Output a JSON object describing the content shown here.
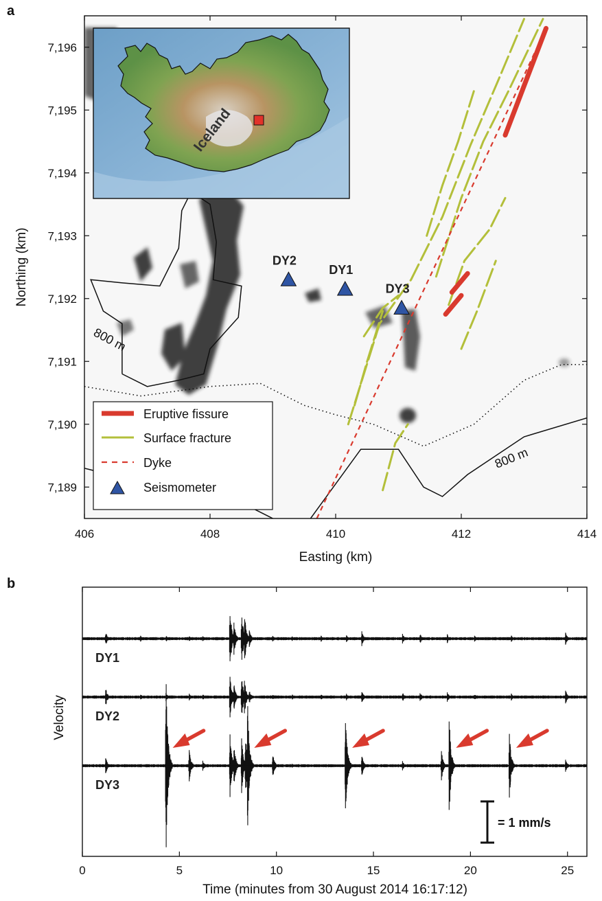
{
  "panels": {
    "a": "a",
    "b": "b"
  },
  "chart_data": [
    {
      "type": "scatter",
      "panel": "a",
      "xlabel": "Easting (km)",
      "ylabel": "Northing (km)",
      "xlim": [
        406,
        414
      ],
      "ylim": [
        7188.5,
        7196.5
      ],
      "xticks": [
        406,
        408,
        410,
        412,
        414
      ],
      "yticks": [
        7189,
        7190,
        7191,
        7192,
        7193,
        7194,
        7195,
        7196
      ],
      "ytick_labels": [
        "7,189",
        "7,190",
        "7,191",
        "7,192",
        "7,193",
        "7,194",
        "7,195",
        "7,196"
      ],
      "inset_label": "Iceland",
      "contour_label": "800 m",
      "legend": {
        "position": "bottom-left",
        "entries": [
          {
            "key": "fissure",
            "label": "Eruptive fissure",
            "color": "#d93a2e"
          },
          {
            "key": "fracture",
            "label": "Surface fracture",
            "color": "#b3bf3a"
          },
          {
            "key": "dyke",
            "label": "Dyke",
            "color": "#d93a2e"
          },
          {
            "key": "seismometer",
            "label": "Seismometer",
            "color": "#2f55a4"
          }
        ]
      },
      "stations": [
        {
          "name": "DY2",
          "x": 409.25,
          "y": 7192.3
        },
        {
          "name": "DY1",
          "x": 410.15,
          "y": 7192.15
        },
        {
          "name": "DY3",
          "x": 411.05,
          "y": 7191.85
        }
      ],
      "dyke": [
        [
          409.7,
          7188.5
        ],
        [
          413.35,
          7196.3
        ]
      ],
      "fissures": [
        [
          [
            412.7,
            7194.6
          ],
          [
            413.35,
            7196.3
          ]
        ],
        [
          [
            411.75,
            7191.75
          ],
          [
            412.0,
            7192.05
          ]
        ],
        [
          [
            411.85,
            7192.1
          ],
          [
            412.1,
            7192.4
          ]
        ]
      ],
      "fractures": [
        [
          [
            410.2,
            7190.0
          ],
          [
            410.7,
            7191.6
          ],
          [
            411.2,
            7192.3
          ],
          [
            411.7,
            7193.3
          ],
          [
            412.15,
            7194.45
          ],
          [
            412.6,
            7195.5
          ],
          [
            413.0,
            7196.45
          ]
        ],
        [
          [
            410.75,
            7188.95
          ],
          [
            410.95,
            7189.7
          ],
          [
            411.15,
            7190.0
          ]
        ],
        [
          [
            410.3,
            7190.3
          ],
          [
            410.5,
            7191.0
          ],
          [
            410.75,
            7191.8
          ]
        ],
        [
          [
            411.6,
            7192.35
          ],
          [
            412.0,
            7193.6
          ],
          [
            412.35,
            7194.5
          ],
          [
            412.75,
            7195.3
          ],
          [
            413.3,
            7196.45
          ]
        ],
        [
          [
            411.8,
            7191.9
          ],
          [
            412.05,
            7192.6
          ],
          [
            412.45,
            7193.1
          ],
          [
            412.7,
            7193.6
          ]
        ],
        [
          [
            412.0,
            7191.2
          ],
          [
            412.25,
            7191.8
          ],
          [
            412.55,
            7192.6
          ]
        ],
        [
          [
            411.45,
            7193.0
          ],
          [
            411.7,
            7193.8
          ],
          [
            411.95,
            7194.5
          ],
          [
            412.2,
            7195.3
          ]
        ],
        [
          [
            410.45,
            7191.4
          ],
          [
            410.75,
            7191.85
          ],
          [
            411.0,
            7192.05
          ]
        ]
      ],
      "contours": [
        [
          [
            406.0,
            7189.3
          ],
          [
            407.2,
            7189.0
          ],
          [
            408.5,
            7188.75
          ],
          [
            409.0,
            7188.5
          ]
        ],
        [
          [
            409.6,
            7188.5
          ],
          [
            410.4,
            7189.6
          ],
          [
            411.0,
            7189.6
          ],
          [
            411.4,
            7189.0
          ],
          [
            411.7,
            7188.85
          ],
          [
            412.1,
            7189.2
          ],
          [
            413.0,
            7189.8
          ],
          [
            414.0,
            7190.1
          ]
        ],
        [
          [
            406.6,
            7190.8
          ],
          [
            406.6,
            7191.6
          ],
          [
            406.3,
            7191.8
          ],
          [
            406.1,
            7192.3
          ],
          [
            406.6,
            7192.25
          ],
          [
            407.2,
            7192.2
          ],
          [
            407.5,
            7192.8
          ],
          [
            407.55,
            7193.4
          ],
          [
            407.7,
            7193.7
          ],
          [
            408.0,
            7193.5
          ],
          [
            408.1,
            7192.9
          ],
          [
            408.05,
            7192.3
          ],
          [
            408.5,
            7192.2
          ],
          [
            408.45,
            7191.7
          ],
          [
            408.0,
            7191.2
          ],
          [
            407.9,
            7190.8
          ],
          [
            407.5,
            7190.7
          ],
          [
            407.0,
            7190.6
          ],
          [
            406.6,
            7190.8
          ]
        ]
      ],
      "dotted": [
        [
          406.0,
          7190.6
        ],
        [
          406.9,
          7190.45
        ],
        [
          408.0,
          7190.6
        ],
        [
          408.8,
          7190.65
        ],
        [
          409.5,
          7190.3
        ],
        [
          410.0,
          7190.15
        ],
        [
          410.6,
          7190.0
        ],
        [
          411.4,
          7189.65
        ],
        [
          412.2,
          7190.0
        ],
        [
          413.0,
          7190.7
        ],
        [
          413.6,
          7190.95
        ],
        [
          414.0,
          7190.95
        ]
      ]
    },
    {
      "type": "line",
      "panel": "b",
      "xlabel": "Time (minutes from 30 August 2014 16:17:12)",
      "ylabel": "Velocity",
      "xlim": [
        0,
        26
      ],
      "xticks": [
        0,
        5,
        10,
        15,
        20,
        25
      ],
      "scale_bar_label": "= 1 mm/s",
      "series": [
        {
          "name": "DY1",
          "events": [
            [
              1.2,
              0.12
            ],
            [
              3.0,
              0.05
            ],
            [
              4.3,
              0.06
            ],
            [
              5.5,
              0.05
            ],
            [
              6.2,
              0.05
            ],
            [
              7.6,
              0.55
            ],
            [
              7.8,
              0.3
            ],
            [
              8.2,
              0.5
            ],
            [
              8.35,
              0.45
            ],
            [
              8.6,
              0.15
            ],
            [
              9.8,
              0.06
            ],
            [
              10.8,
              0.05
            ],
            [
              12.3,
              0.05
            ],
            [
              13.6,
              0.06
            ],
            [
              14.4,
              0.12
            ],
            [
              16.5,
              0.08
            ],
            [
              17.4,
              0.08
            ],
            [
              18.8,
              0.08
            ],
            [
              20.2,
              0.06
            ],
            [
              22.1,
              0.06
            ],
            [
              24.9,
              0.1
            ]
          ]
        },
        {
          "name": "DY2",
          "events": [
            [
              1.2,
              0.15
            ],
            [
              3.0,
              0.05
            ],
            [
              4.3,
              0.08
            ],
            [
              5.5,
              0.06
            ],
            [
              6.2,
              0.05
            ],
            [
              7.6,
              0.45
            ],
            [
              7.8,
              0.25
            ],
            [
              8.2,
              0.4
            ],
            [
              8.35,
              0.3
            ],
            [
              8.6,
              0.12
            ],
            [
              9.8,
              0.05
            ],
            [
              10.8,
              0.05
            ],
            [
              12.3,
              0.05
            ],
            [
              13.6,
              0.07
            ],
            [
              14.4,
              0.12
            ],
            [
              16.5,
              0.08
            ],
            [
              17.4,
              0.08
            ],
            [
              18.8,
              0.09
            ],
            [
              20.2,
              0.06
            ],
            [
              22.1,
              0.06
            ],
            [
              24.9,
              0.12
            ]
          ]
        },
        {
          "name": "DY3",
          "events": [
            [
              1.2,
              0.15
            ],
            [
              4.3,
              1.9
            ],
            [
              5.5,
              0.3
            ],
            [
              6.2,
              0.1
            ],
            [
              7.6,
              0.55
            ],
            [
              7.8,
              0.4
            ],
            [
              8.2,
              0.5
            ],
            [
              8.4,
              0.6
            ],
            [
              8.5,
              1.2
            ],
            [
              9.8,
              0.25
            ],
            [
              10.8,
              0.05
            ],
            [
              13.55,
              1.0
            ],
            [
              14.4,
              0.2
            ],
            [
              16.5,
              0.08
            ],
            [
              18.5,
              0.25
            ],
            [
              18.9,
              0.85
            ],
            [
              22.0,
              0.6
            ],
            [
              24.9,
              0.12
            ]
          ]
        }
      ],
      "arrows_at": [
        4.3,
        8.5,
        13.55,
        18.9,
        22.0
      ],
      "arrow_color": "#d93a2e"
    }
  ]
}
